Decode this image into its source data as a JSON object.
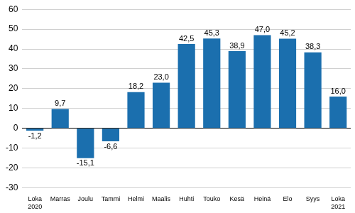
{
  "chart_data": {
    "type": "bar",
    "categories": [
      "Loka\n2020",
      "Marras",
      "Joulu",
      "Tammi",
      "Helmi",
      "Maalis",
      "Huhti",
      "Touko",
      "Kesä",
      "Heinä",
      "Elo",
      "Syys",
      "Loka\n2021"
    ],
    "values": [
      -1.2,
      9.7,
      -15.1,
      -6.6,
      18.2,
      23.0,
      42.5,
      45.3,
      38.9,
      47.0,
      45.2,
      38.3,
      16.0
    ],
    "value_labels": [
      "-1,2",
      "9,7",
      "-15,1",
      "-6,6",
      "18,2",
      "23,0",
      "42,5",
      "45,3",
      "38,9",
      "47,0",
      "45,2",
      "38,3",
      "16,0"
    ],
    "color": "#1b6fae",
    "ylim": [
      -30,
      60
    ],
    "yticks": [
      -30,
      -20,
      -10,
      0,
      10,
      20,
      30,
      40,
      50,
      60
    ],
    "grid": true,
    "data_labels": true
  }
}
